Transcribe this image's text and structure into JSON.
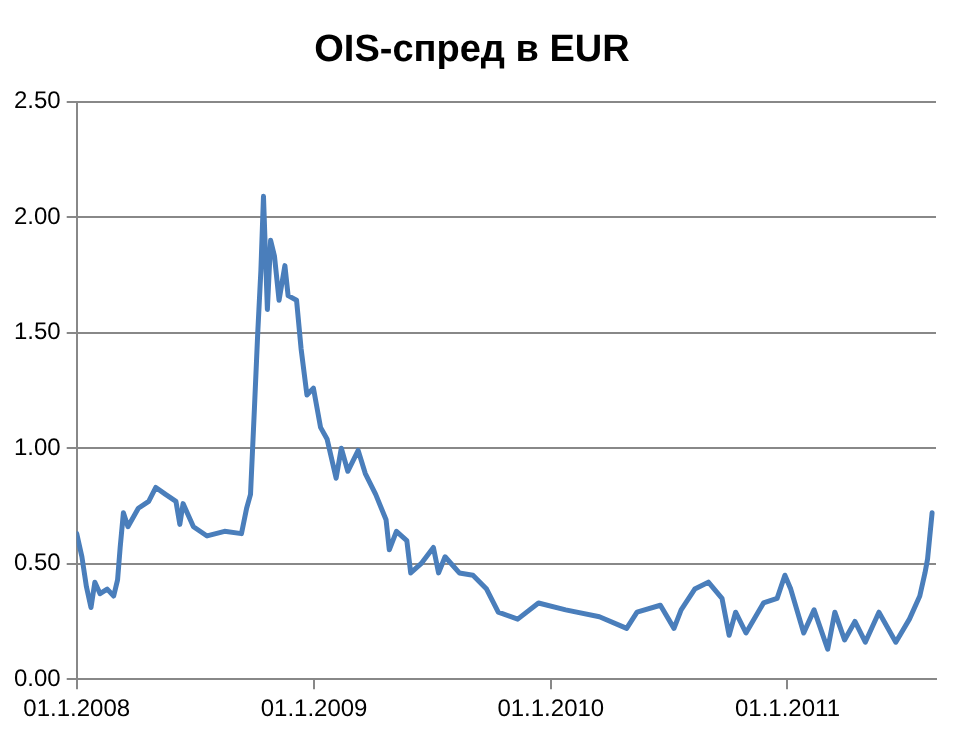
{
  "chart_data": {
    "type": "line",
    "title": "OIS-спред в EUR",
    "x": [
      "2008-01-01",
      "2008-01-09",
      "2008-01-16",
      "2008-01-23",
      "2008-01-29",
      "2008-02-06",
      "2008-02-17",
      "2008-02-27",
      "2008-03-04",
      "2008-03-08",
      "2008-03-13",
      "2008-03-20",
      "2008-04-05",
      "2008-04-21",
      "2008-05-02",
      "2008-05-17",
      "2008-06-02",
      "2008-06-08",
      "2008-06-13",
      "2008-06-29",
      "2008-07-20",
      "2008-08-16",
      "2008-09-11",
      "2008-09-19",
      "2008-09-25",
      "2008-10-01",
      "2008-10-06",
      "2008-10-11",
      "2008-10-15",
      "2008-10-21",
      "2008-10-26",
      "2008-11-01",
      "2008-11-08",
      "2008-11-17",
      "2008-11-22",
      "2008-12-05",
      "2008-12-12",
      "2008-12-21",
      "2008-12-31",
      "2009-01-11",
      "2009-01-21",
      "2009-02-04",
      "2009-02-12",
      "2009-02-22",
      "2009-03-10",
      "2009-03-21",
      "2009-04-06",
      "2009-04-22",
      "2009-04-27",
      "2009-05-08",
      "2009-05-24",
      "2009-05-30",
      "2009-06-15",
      "2009-07-04",
      "2009-07-12",
      "2009-07-22",
      "2009-08-13",
      "2009-09-03",
      "2009-09-24",
      "2009-10-12",
      "2009-11-11",
      "2009-12-13",
      "2010-01-24",
      "2010-03-17",
      "2010-04-28",
      "2010-05-14",
      "2010-06-19",
      "2010-07-10",
      "2010-07-21",
      "2010-08-11",
      "2010-09-01",
      "2010-09-22",
      "2010-10-03",
      "2010-10-13",
      "2010-10-29",
      "2010-11-25",
      "2010-12-16",
      "2010-12-28",
      "2011-01-06",
      "2011-01-26",
      "2011-02-11",
      "2011-03-04",
      "2011-03-15",
      "2011-03-30",
      "2011-04-15",
      "2011-05-01",
      "2011-05-22",
      "2011-06-17",
      "2011-07-08",
      "2011-07-24",
      "2011-08-01",
      "2011-08-05",
      "2011-08-12"
    ],
    "series": [
      {
        "color": "#4a7ebb",
        "values": [
          0.63,
          0.53,
          0.4,
          0.31,
          0.42,
          0.37,
          0.39,
          0.36,
          0.43,
          0.57,
          0.72,
          0.66,
          0.74,
          0.77,
          0.83,
          0.8,
          0.77,
          0.67,
          0.76,
          0.66,
          0.62,
          0.64,
          0.63,
          0.74,
          0.8,
          1.17,
          1.49,
          1.77,
          2.09,
          1.6,
          1.9,
          1.83,
          1.64,
          1.79,
          1.66,
          1.64,
          1.43,
          1.23,
          1.26,
          1.09,
          1.04,
          0.87,
          1.0,
          0.9,
          0.99,
          0.89,
          0.8,
          0.69,
          0.56,
          0.64,
          0.6,
          0.46,
          0.5,
          0.57,
          0.46,
          0.53,
          0.46,
          0.45,
          0.39,
          0.29,
          0.26,
          0.33,
          0.3,
          0.27,
          0.22,
          0.29,
          0.32,
          0.22,
          0.3,
          0.39,
          0.42,
          0.35,
          0.19,
          0.29,
          0.2,
          0.33,
          0.35,
          0.45,
          0.39,
          0.2,
          0.3,
          0.13,
          0.29,
          0.17,
          0.25,
          0.16,
          0.29,
          0.16,
          0.26,
          0.36,
          0.46,
          0.52,
          0.72
        ]
      }
    ],
    "xlim": [
      "2008-01-01",
      "2011-08-18"
    ],
    "xticks": [
      {
        "value": "2008-01-01",
        "label": "01.1.2008"
      },
      {
        "value": "2009-01-01",
        "label": "01.1.2009"
      },
      {
        "value": "2010-01-01",
        "label": "01.1.2010"
      },
      {
        "value": "2011-01-01",
        "label": "01.1.2011"
      }
    ],
    "ylim": [
      0,
      2.5
    ],
    "yticks": [
      {
        "value": 0,
        "label": "0.00"
      },
      {
        "value": 0.5,
        "label": "0.50"
      },
      {
        "value": 1,
        "label": "1.00"
      },
      {
        "value": 1.5,
        "label": "1.50"
      },
      {
        "value": 2,
        "label": "2.00"
      },
      {
        "value": 2.5,
        "label": "2.50"
      }
    ],
    "grid": "y",
    "legend": false,
    "marker": "none",
    "line_style": "solid"
  }
}
